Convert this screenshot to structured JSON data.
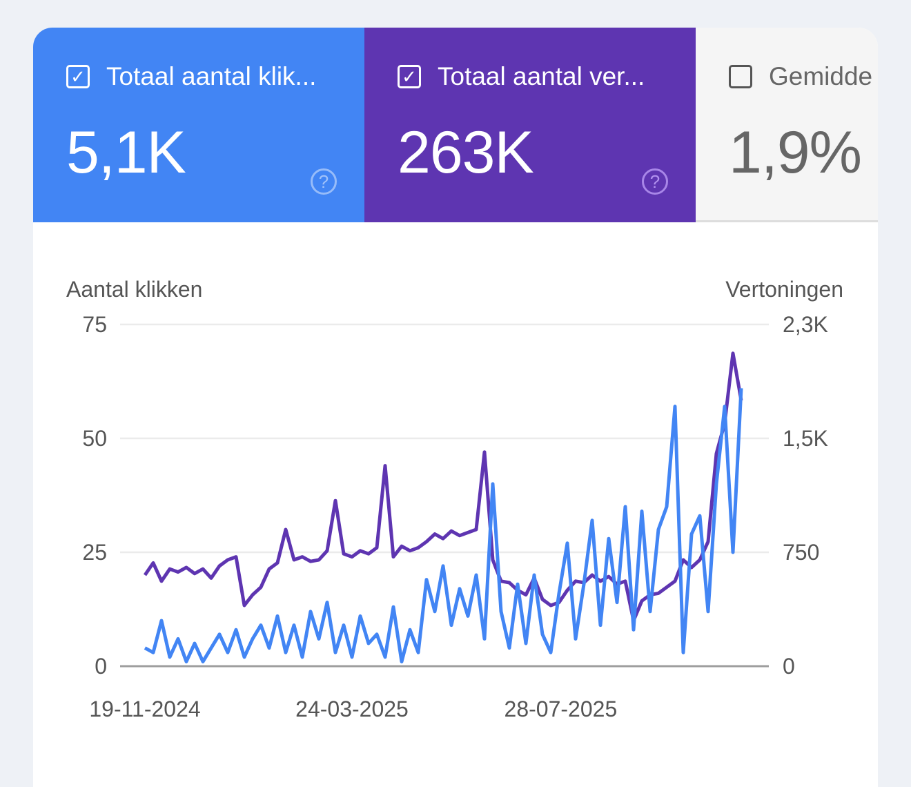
{
  "metrics": [
    {
      "label": "Totaal aantal klik...",
      "value": "5,1K",
      "checked": true,
      "color": "#4285f4"
    },
    {
      "label": "Totaal aantal ver...",
      "value": "263K",
      "checked": true,
      "color": "#5e35b1"
    },
    {
      "label": "Gemidde",
      "value": "1,9%",
      "checked": false,
      "color": "#f5f5f5"
    }
  ],
  "help_icon": "?",
  "checkmark": "✓",
  "chart_data": {
    "type": "line",
    "grid": true,
    "y_left": {
      "label": "Aantal klikken",
      "range": [
        0,
        75
      ],
      "ticks": [
        "0",
        "25",
        "50",
        "75"
      ],
      "tick_values": [
        0,
        25,
        50,
        75
      ]
    },
    "y_right": {
      "label": "Vertoningen",
      "range": [
        0,
        2250
      ],
      "ticks": [
        "0",
        "750",
        "1,5K",
        "2,3K"
      ],
      "tick_values": [
        0,
        750,
        1500,
        2250
      ]
    },
    "x_ticks": [
      "19-11-2024",
      "24-03-2025",
      "28-07-2025"
    ],
    "x": [
      "2024-11-19",
      "2024-11-24",
      "2024-11-29",
      "2024-12-04",
      "2024-12-09",
      "2024-12-14",
      "2024-12-19",
      "2024-12-24",
      "2024-12-29",
      "2025-01-03",
      "2025-01-08",
      "2025-01-13",
      "2025-01-18",
      "2025-01-23",
      "2025-01-28",
      "2025-02-02",
      "2025-02-07",
      "2025-02-12",
      "2025-02-17",
      "2025-02-22",
      "2025-02-27",
      "2025-03-04",
      "2025-03-09",
      "2025-03-14",
      "2025-03-19",
      "2025-03-24",
      "2025-03-29",
      "2025-04-03",
      "2025-04-08",
      "2025-04-13",
      "2025-04-18",
      "2025-04-23",
      "2025-04-28",
      "2025-05-03",
      "2025-05-08",
      "2025-05-13",
      "2025-05-18",
      "2025-05-23",
      "2025-05-28",
      "2025-06-02",
      "2025-06-07",
      "2025-06-12",
      "2025-06-17",
      "2025-06-22",
      "2025-06-27",
      "2025-07-02",
      "2025-07-07",
      "2025-07-12",
      "2025-07-17",
      "2025-07-22",
      "2025-07-27",
      "2025-08-01",
      "2025-08-06",
      "2025-08-11",
      "2025-08-16",
      "2025-08-21",
      "2025-08-26",
      "2025-08-31",
      "2025-09-05",
      "2025-09-10",
      "2025-09-15",
      "2025-09-20",
      "2025-09-25",
      "2025-09-30",
      "2025-10-05",
      "2025-10-10",
      "2025-10-15",
      "2025-10-20",
      "2025-10-25",
      "2025-10-30",
      "2025-11-04",
      "2025-11-09",
      "2025-11-14"
    ],
    "series": [
      {
        "name": "Totaal aantal klikken",
        "axis": "left",
        "color": "#4285f4",
        "values": [
          4,
          3,
          10,
          2,
          6,
          1,
          5,
          1,
          4,
          7,
          3,
          8,
          2,
          6,
          9,
          4,
          11,
          3,
          9,
          2,
          12,
          6,
          14,
          3,
          9,
          2,
          11,
          5,
          7,
          2,
          13,
          1,
          8,
          3,
          19,
          12,
          22,
          9,
          17,
          11,
          20,
          6,
          40,
          12,
          4,
          18,
          5,
          20,
          7,
          3,
          16,
          27,
          6,
          18,
          32,
          9,
          28,
          14,
          35,
          8,
          34,
          12,
          30,
          35,
          57,
          3,
          29,
          33,
          12,
          40,
          57,
          25,
          61
        ]
      },
      {
        "name": "Totaal aantal vertoningen",
        "axis": "right",
        "color": "#5e35b1",
        "values": [
          600,
          680,
          560,
          640,
          620,
          650,
          610,
          640,
          580,
          660,
          700,
          720,
          400,
          470,
          520,
          640,
          680,
          900,
          700,
          720,
          690,
          700,
          760,
          1090,
          740,
          720,
          760,
          740,
          780,
          1320,
          720,
          790,
          760,
          780,
          820,
          870,
          840,
          890,
          860,
          880,
          900,
          1410,
          700,
          560,
          550,
          500,
          470,
          580,
          440,
          400,
          420,
          500,
          560,
          550,
          600,
          560,
          590,
          540,
          560,
          300,
          430,
          470,
          480,
          520,
          560,
          700,
          650,
          700,
          820,
          1400,
          1600,
          2060,
          1750
        ]
      }
    ]
  }
}
